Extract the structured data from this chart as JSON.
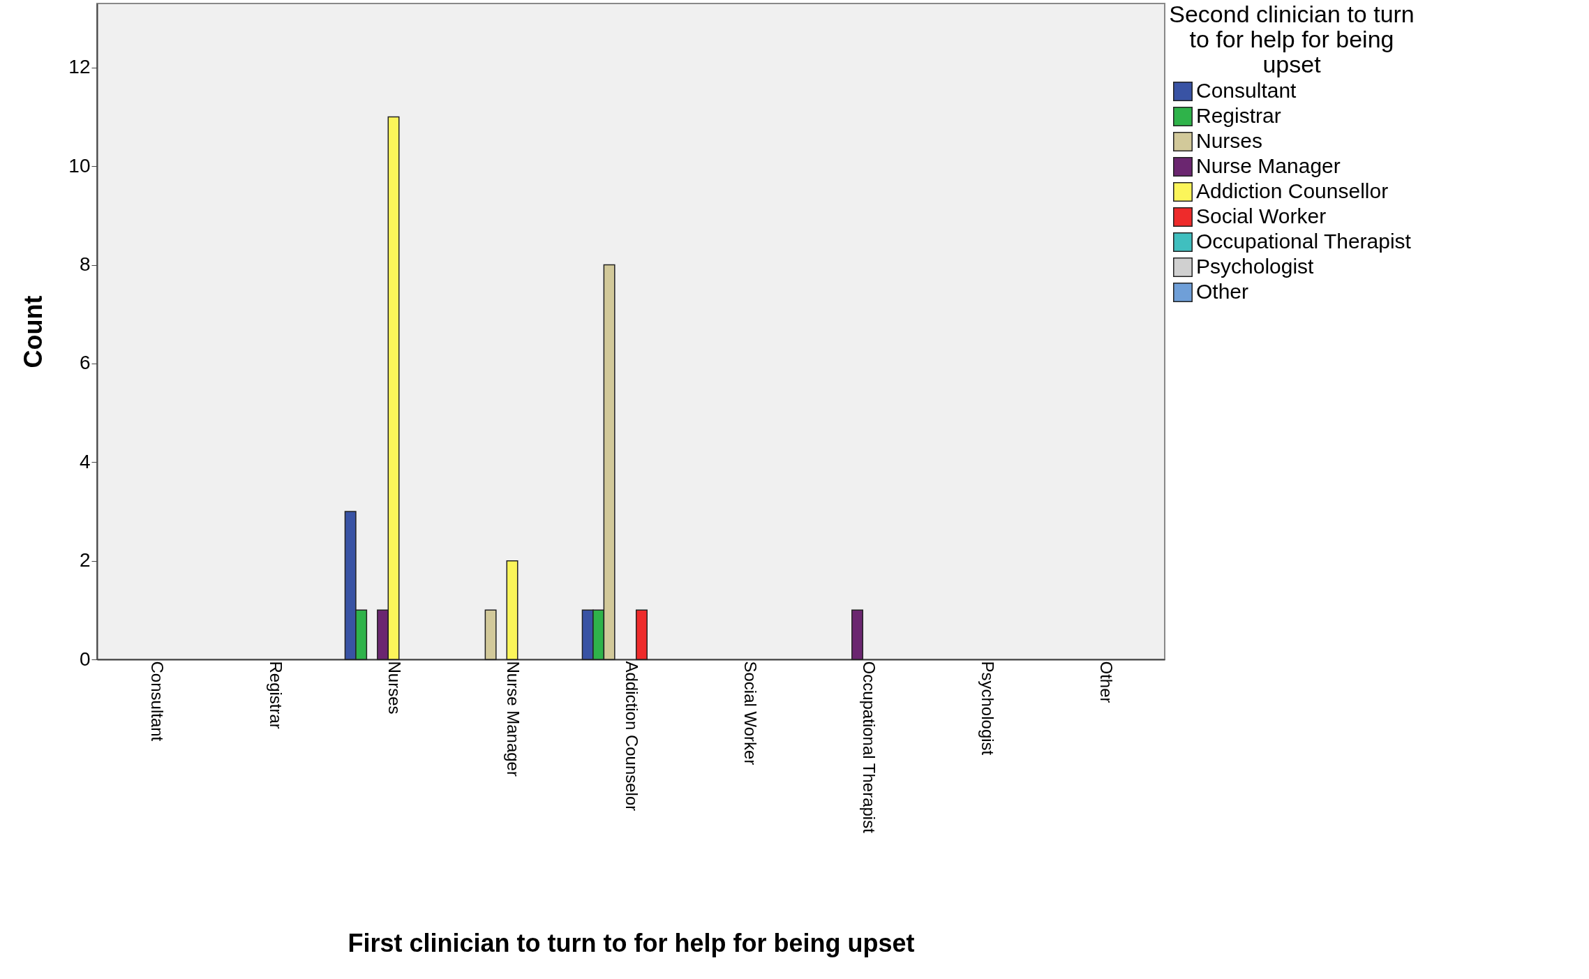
{
  "chart_data": {
    "type": "bar",
    "xlabel": "First clinician to turn to for help for being upset",
    "ylabel": "Count",
    "legend_title": "Second clinician to turn to for help for being upset",
    "categories": [
      "Consultant",
      "Registrar",
      "Nurses",
      "Nurse Manager",
      "Addiction Counselor",
      "Social Worker",
      "Occupational Therapist",
      "Psychologist",
      "Other"
    ],
    "series": [
      {
        "name": "Consultant",
        "color": "#3953a4",
        "values": [
          null,
          null,
          3,
          null,
          1,
          null,
          null,
          null,
          null
        ]
      },
      {
        "name": "Registrar",
        "color": "#2fb34a",
        "values": [
          null,
          null,
          1,
          null,
          1,
          null,
          null,
          null,
          null
        ]
      },
      {
        "name": "Nurses",
        "color": "#d2c99a",
        "values": [
          null,
          null,
          null,
          1,
          8,
          null,
          null,
          null,
          null
        ]
      },
      {
        "name": "Nurse Manager",
        "color": "#6b2670",
        "values": [
          null,
          null,
          1,
          null,
          null,
          null,
          1,
          null,
          null
        ]
      },
      {
        "name": "Addiction Counsellor",
        "color": "#fbf55a",
        "values": [
          null,
          null,
          11,
          2,
          null,
          null,
          null,
          null,
          null
        ]
      },
      {
        "name": "Social Worker",
        "color": "#ee2b2b",
        "values": [
          null,
          null,
          null,
          null,
          1,
          null,
          null,
          null,
          null
        ]
      },
      {
        "name": "Occupational Therapist",
        "color": "#40bfbf",
        "values": [
          null,
          null,
          null,
          null,
          null,
          null,
          null,
          null,
          null
        ]
      },
      {
        "name": "Psychologist",
        "color": "#d0d0d0",
        "values": [
          null,
          null,
          null,
          null,
          null,
          null,
          null,
          null,
          null
        ]
      },
      {
        "name": "Other",
        "color": "#6f9fd8",
        "values": [
          null,
          null,
          null,
          null,
          null,
          null,
          null,
          null,
          null
        ]
      }
    ],
    "ylim": [
      0,
      13.3
    ],
    "yticks": [
      0,
      2,
      4,
      6,
      8,
      10,
      12
    ],
    "grid": false,
    "legend": "top right"
  }
}
